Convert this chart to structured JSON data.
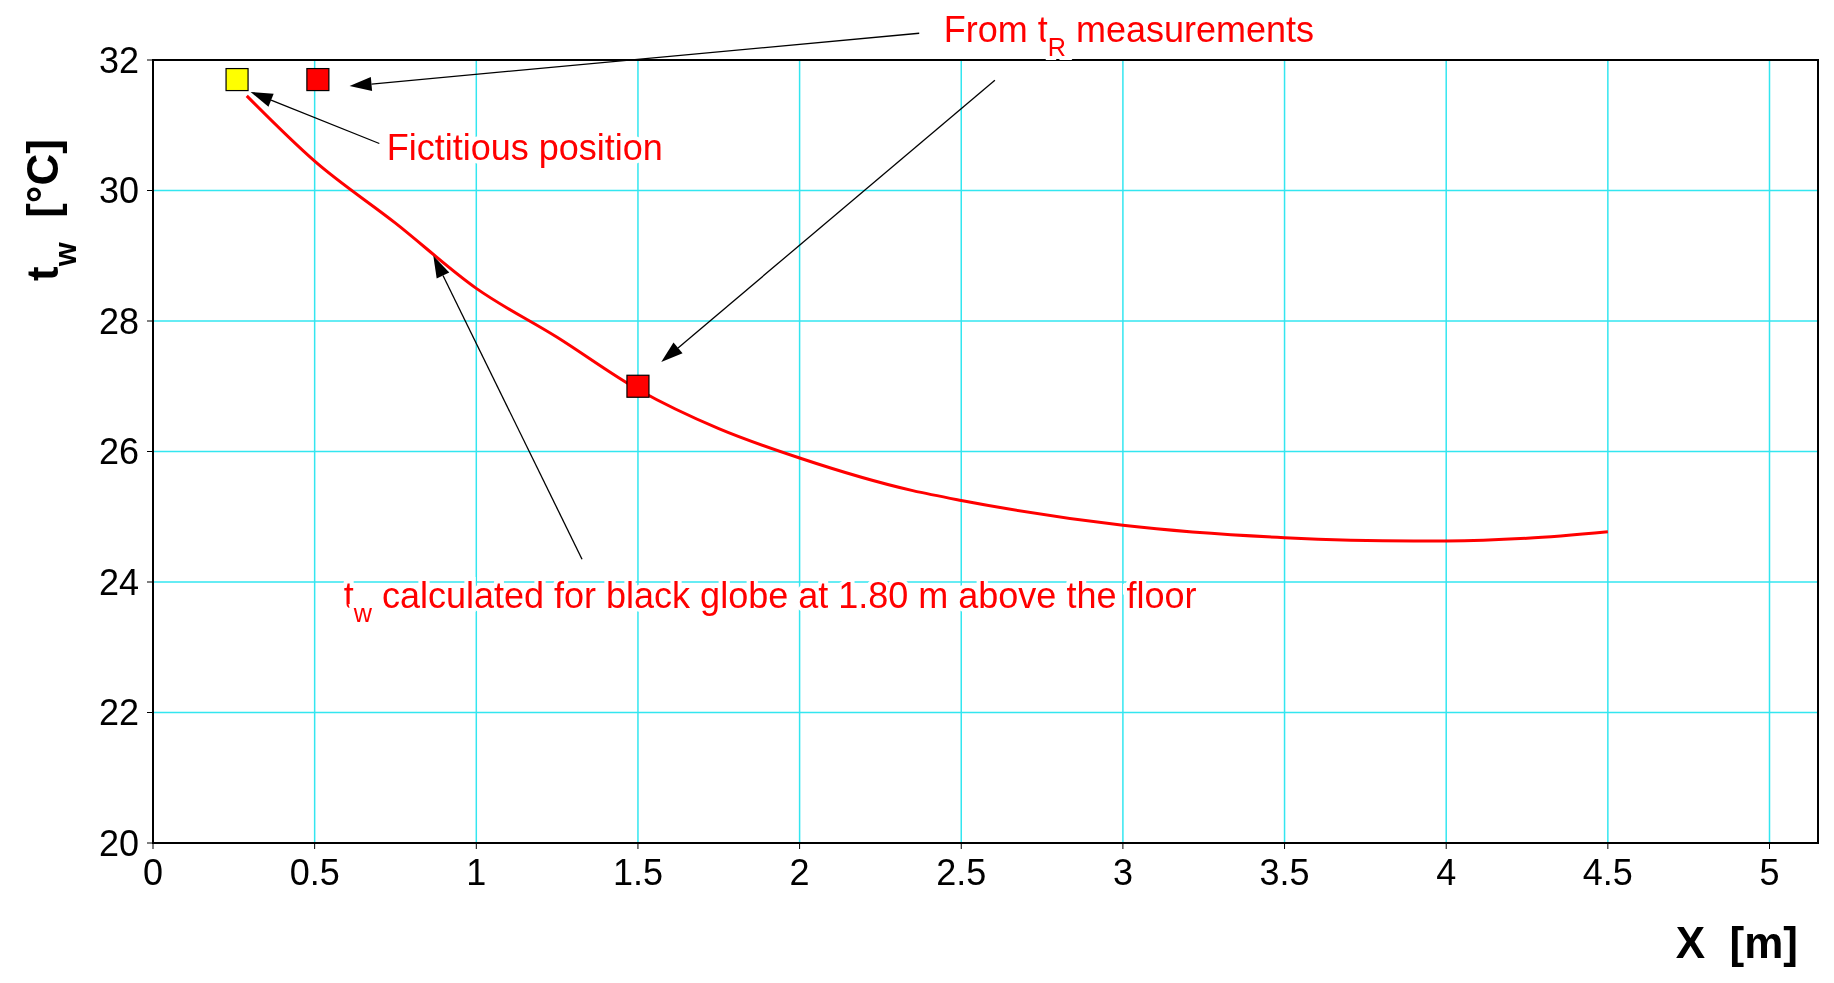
{
  "chart_data": {
    "type": "line",
    "xlabel": "X  [m]",
    "ylabel": "t$_{w}$  [°C]",
    "xlim": [
      0,
      5.15
    ],
    "xticks": [
      0,
      0.5,
      1,
      1.5,
      2,
      2.5,
      3,
      3.5,
      4,
      4.5,
      5
    ],
    "ylim": [
      20,
      32
    ],
    "yticks": [
      20,
      22,
      24,
      26,
      28,
      30,
      32
    ],
    "grid": true,
    "annotations": [
      "From t$_{R}$ measurements",
      "Fictitious position",
      "t$_{w}$ calculated for black globe at 1.80 m above the floor"
    ],
    "series": [
      {
        "type": "line",
        "color": "#ff0000",
        "marker": "none",
        "x": [
          0.29,
          0.5,
          0.75,
          1,
          1.25,
          1.5,
          1.75,
          2,
          2.35,
          2.5,
          3,
          3.5,
          3.9,
          4,
          4.25,
          4.5
        ],
        "values": [
          31.45,
          30.45,
          29.5,
          28.5,
          27.75,
          26.95,
          26.35,
          25.9,
          25.4,
          25.25,
          24.87,
          24.68,
          24.63,
          24.63,
          24.67,
          24.77
        ]
      },
      {
        "type": "scatter",
        "color": "#ffff00",
        "marker": "square",
        "x": [
          0.26
        ],
        "values": [
          31.7
        ]
      },
      {
        "type": "scatter",
        "color": "#ff0000",
        "marker": "square",
        "x": [
          0.51,
          1.5
        ],
        "values": [
          31.7,
          27.0
        ]
      }
    ]
  }
}
